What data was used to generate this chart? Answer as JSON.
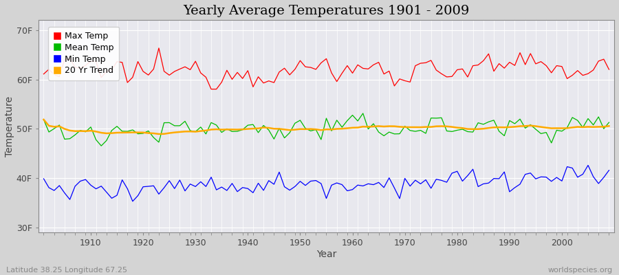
{
  "title": "Yearly Average Temperatures 1901 - 2009",
  "xlabel": "Year",
  "ylabel": "Temperature",
  "years_start": 1901,
  "years_end": 2009,
  "yticks": [
    30,
    40,
    50,
    60,
    70
  ],
  "ytick_labels": [
    "30F",
    "40F",
    "50F",
    "60F",
    "70F"
  ],
  "ylim": [
    29,
    72
  ],
  "xlim": [
    1900,
    2010
  ],
  "bg_color": "#d4d4d4",
  "plot_bg_color": "#e8e8ee",
  "grid_color": "#ffffff",
  "max_temp_color": "#ff0000",
  "mean_temp_color": "#00bb00",
  "min_temp_color": "#0000ff",
  "trend_color": "#ffaa00",
  "legend_labels": [
    "Max Temp",
    "Mean Temp",
    "Min Temp",
    "20 Yr Trend"
  ],
  "footer_left": "Latitude 38.25 Longitude 67.25",
  "footer_right": "worldspecies.org",
  "title_fontsize": 14,
  "axis_label_fontsize": 10,
  "tick_fontsize": 9,
  "footer_fontsize": 8,
  "max_temp_base": 61.5,
  "mean_temp_base": 49.5,
  "min_temp_base": 38.0,
  "max_temp_noise_scale": 2.0,
  "mean_temp_noise_scale": 1.5,
  "min_temp_noise_scale": 1.5,
  "max_temp_trend": 0.8,
  "mean_temp_trend": 1.2,
  "min_temp_trend": 2.0,
  "random_seed": 12345
}
